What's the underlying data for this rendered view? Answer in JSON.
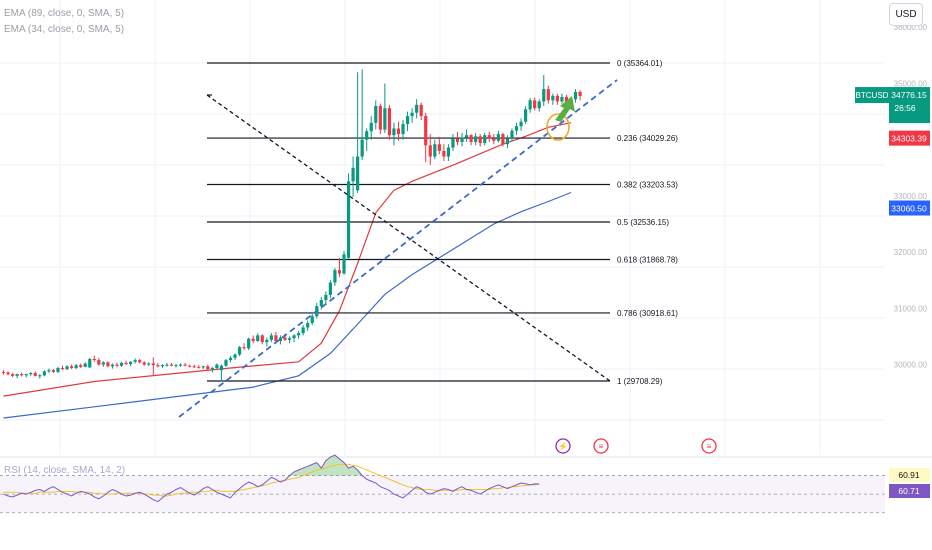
{
  "indicators": {
    "ema_slow": "EMA (89, close, 0, SMA, 5)",
    "ema_fast": "EMA (34, close, 0, SMA, 5)",
    "rsi": "RSI (14, close, SMA, 14, 2)"
  },
  "currency_button": "USD",
  "price_axis": {
    "ticks": [
      {
        "value": 36000,
        "label": "36000.00"
      },
      {
        "value": 35000,
        "label": "35000.00"
      },
      {
        "value": 34000,
        "label": "34000.00"
      },
      {
        "value": 33000,
        "label": "33000.00"
      },
      {
        "value": 32000,
        "label": "32000.00"
      },
      {
        "value": 31000,
        "label": "31000.00"
      },
      {
        "value": 30000,
        "label": "30000.00"
      }
    ],
    "badges": [
      {
        "value": 34776.15,
        "label": "34776.15",
        "sub": "26:56",
        "symbol": "BTCUSD",
        "color": "#089981"
      },
      {
        "value": 34303.39,
        "label": "34303.39",
        "color": "#f23645"
      },
      {
        "value": 33060.5,
        "label": "33060.50",
        "color": "#2962ff"
      }
    ]
  },
  "fibonacci": [
    {
      "level": "0",
      "price": "35364.01",
      "value": 35364.01
    },
    {
      "level": "0.236",
      "price": "34029.26",
      "value": 34029.26
    },
    {
      "level": "0.382",
      "price": "33203.53",
      "value": 33203.53
    },
    {
      "level": "0.5",
      "price": "32536.15",
      "value": 32536.15
    },
    {
      "level": "0.618",
      "price": "31868.78",
      "value": 31868.78
    },
    {
      "level": "0.786",
      "price": "30918.61",
      "value": 30918.61
    },
    {
      "level": "1",
      "price": "29708.29",
      "value": 29708.29
    }
  ],
  "rsi_badges": [
    {
      "label": "60.91",
      "color": "#fff9c4",
      "text": "#131722"
    },
    {
      "label": "60.71",
      "color": "#7e57c2",
      "text": "#ffffff"
    }
  ],
  "chart_data": {
    "type": "candlestick",
    "symbol": "BTCUSD",
    "last_price": 34776.15,
    "countdown": "26:56",
    "ylim": [
      29200,
      36300
    ],
    "candles": [
      [
        29870,
        29900,
        29820,
        29860
      ],
      [
        29860,
        29880,
        29810,
        29830
      ],
      [
        29830,
        29850,
        29780,
        29800
      ],
      [
        29800,
        29840,
        29760,
        29830
      ],
      [
        29830,
        29860,
        29790,
        29810
      ],
      [
        29810,
        29840,
        29770,
        29830
      ],
      [
        29830,
        29870,
        29800,
        29850
      ],
      [
        29850,
        29880,
        29790,
        29800
      ],
      [
        29800,
        29830,
        29750,
        29810
      ],
      [
        29810,
        29900,
        29790,
        29880
      ],
      [
        29880,
        29930,
        29850,
        29900
      ],
      [
        29900,
        29920,
        29850,
        29870
      ],
      [
        29870,
        29960,
        29850,
        29940
      ],
      [
        29940,
        29980,
        29900,
        29920
      ],
      [
        29920,
        29990,
        29900,
        29970
      ],
      [
        29970,
        30000,
        29920,
        29940
      ],
      [
        29940,
        30010,
        29920,
        29990
      ],
      [
        29990,
        30020,
        29940,
        29960
      ],
      [
        29960,
        30040,
        29950,
        30020
      ],
      [
        29950,
        30120,
        29940,
        30100
      ],
      [
        30100,
        30160,
        30050,
        30080
      ],
      [
        30080,
        30120,
        29980,
        30000
      ],
      [
        30000,
        30060,
        29960,
        30040
      ],
      [
        30040,
        30060,
        29950,
        29970
      ],
      [
        29970,
        30020,
        29930,
        30000
      ],
      [
        30000,
        30030,
        29950,
        29980
      ],
      [
        29980,
        30050,
        29960,
        30030
      ],
      [
        30030,
        30070,
        29990,
        30010
      ],
      [
        30010,
        30060,
        29970,
        30050
      ],
      [
        30050,
        30110,
        30020,
        30080
      ],
      [
        30080,
        30100,
        30020,
        30040
      ],
      [
        30040,
        30060,
        29980,
        30000
      ],
      [
        30000,
        30040,
        29970,
        30020
      ],
      [
        30020,
        30130,
        29800,
        29990
      ],
      [
        29990,
        30030,
        29950,
        29970
      ],
      [
        29970,
        30010,
        29940,
        29990
      ],
      [
        29990,
        30030,
        29960,
        30000
      ],
      [
        30000,
        30030,
        29970,
        29980
      ],
      [
        29980,
        30010,
        29950,
        29990
      ],
      [
        29990,
        30020,
        29960,
        30000
      ],
      [
        30000,
        30030,
        29970,
        29980
      ],
      [
        29980,
        30000,
        29950,
        29970
      ],
      [
        29970,
        30000,
        29940,
        29960
      ],
      [
        29960,
        29990,
        29930,
        29950
      ],
      [
        29950,
        29980,
        29920,
        29970
      ],
      [
        29970,
        30000,
        29900,
        29920
      ],
      [
        29920,
        29960,
        29860,
        29940
      ],
      [
        29940,
        30020,
        29920,
        30000
      ],
      [
        29900,
        30000,
        29700,
        29980
      ],
      [
        29980,
        30100,
        29960,
        30080
      ],
      [
        30080,
        30150,
        30040,
        30120
      ],
      [
        30120,
        30200,
        30080,
        30180
      ],
      [
        30180,
        30330,
        30150,
        30310
      ],
      [
        30310,
        30380,
        30260,
        30290
      ],
      [
        30290,
        30480,
        30260,
        30460
      ],
      [
        30460,
        30520,
        30380,
        30420
      ],
      [
        30420,
        30560,
        30400,
        30520
      ],
      [
        30520,
        30540,
        30360,
        30400
      ],
      [
        30400,
        30480,
        30320,
        30440
      ],
      [
        30440,
        30560,
        30400,
        30520
      ],
      [
        30520,
        30580,
        30380,
        30420
      ],
      [
        30420,
        30520,
        30360,
        30480
      ],
      [
        30480,
        30550,
        30420,
        30440
      ],
      [
        30440,
        30500,
        30380,
        30470
      ],
      [
        30470,
        30540,
        30400,
        30520
      ],
      [
        30520,
        30600,
        30460,
        30560
      ],
      [
        30560,
        30700,
        30520,
        30660
      ],
      [
        30660,
        30780,
        30600,
        30740
      ],
      [
        30740,
        30900,
        30700,
        30860
      ],
      [
        30860,
        31100,
        30820,
        31040
      ],
      [
        31040,
        31200,
        30980,
        31150
      ],
      [
        31150,
        31300,
        31080,
        31240
      ],
      [
        31240,
        31500,
        31180,
        31460
      ],
      [
        31460,
        31720,
        31400,
        31680
      ],
      [
        31680,
        31900,
        31560,
        31620
      ],
      [
        31620,
        32020,
        31600,
        31960
      ],
      [
        31900,
        33400,
        31880,
        33260
      ],
      [
        33260,
        33700,
        32980,
        33500
      ],
      [
        33100,
        35200,
        33050,
        33700
      ],
      [
        33700,
        35250,
        33640,
        34000
      ],
      [
        34000,
        34200,
        33800,
        34150
      ],
      [
        34150,
        34420,
        34000,
        34300
      ],
      [
        34300,
        34700,
        34180,
        34600
      ],
      [
        34600,
        34640,
        34100,
        34180
      ],
      [
        34180,
        35000,
        34120,
        34560
      ],
      [
        34560,
        34620,
        34000,
        34080
      ],
      [
        34080,
        34300,
        33900,
        34200
      ],
      [
        34200,
        34320,
        33980,
        34100
      ],
      [
        34100,
        34350,
        34000,
        34280
      ],
      [
        34280,
        34500,
        34150,
        34420
      ],
      [
        34420,
        34560,
        34300,
        34480
      ],
      [
        34480,
        34720,
        34380,
        34620
      ],
      [
        34620,
        34660,
        34350,
        34420
      ],
      [
        34420,
        34480,
        33600,
        33900
      ],
      [
        33900,
        34100,
        33550,
        33700
      ],
      [
        33700,
        34000,
        33650,
        33920
      ],
      [
        33920,
        34050,
        33740,
        33800
      ],
      [
        33800,
        33920,
        33620,
        33700
      ],
      [
        33700,
        33920,
        33620,
        33860
      ],
      [
        33860,
        34100,
        33800,
        34020
      ],
      [
        34020,
        34140,
        33900,
        33960
      ],
      [
        33960,
        34120,
        33880,
        34040
      ],
      [
        34040,
        34180,
        33960,
        34080
      ],
      [
        34080,
        34100,
        33900,
        33960
      ],
      [
        33960,
        34120,
        33900,
        34060
      ],
      [
        34060,
        34100,
        33880,
        33940
      ],
      [
        33940,
        34120,
        33900,
        34080
      ],
      [
        34080,
        34140,
        33960,
        34020
      ],
      [
        34020,
        34100,
        33920,
        33980
      ],
      [
        33980,
        34160,
        33950,
        34100
      ],
      [
        34100,
        34120,
        33880,
        33920
      ],
      [
        33920,
        34080,
        33850,
        34020
      ],
      [
        34020,
        34200,
        33980,
        34160
      ],
      [
        34160,
        34300,
        34080,
        34240
      ],
      [
        34240,
        34380,
        34160,
        34320
      ],
      [
        34320,
        34600,
        34280,
        34540
      ],
      [
        34540,
        34740,
        34480,
        34700
      ],
      [
        34700,
        34750,
        34520,
        34560
      ],
      [
        34560,
        34720,
        34500,
        34680
      ],
      [
        34680,
        35150,
        34600,
        34900
      ],
      [
        34900,
        34960,
        34640,
        34700
      ],
      [
        34700,
        34820,
        34620,
        34780
      ],
      [
        34780,
        34820,
        34620,
        34680
      ],
      [
        34680,
        34820,
        34640,
        34760
      ],
      [
        34760,
        34800,
        34560,
        34620
      ],
      [
        34620,
        34760,
        34580,
        34720
      ],
      [
        34720,
        34900,
        34660,
        34850
      ],
      [
        34850,
        34880,
        34700,
        34776
      ]
    ],
    "ema_34": [
      [
        0,
        29440
      ],
      [
        20,
        29700
      ],
      [
        50,
        29940
      ],
      [
        65,
        30050
      ],
      [
        70,
        30380
      ],
      [
        74,
        30960
      ],
      [
        78,
        31800
      ],
      [
        82,
        32700
      ],
      [
        86,
        33100
      ],
      [
        90,
        33260
      ],
      [
        95,
        33420
      ],
      [
        100,
        33580
      ],
      [
        105,
        33750
      ],
      [
        110,
        33920
      ],
      [
        115,
        34060
      ],
      [
        120,
        34220
      ],
      [
        125,
        34303
      ]
    ],
    "ema_89": [
      [
        0,
        29050
      ],
      [
        20,
        29250
      ],
      [
        40,
        29450
      ],
      [
        55,
        29600
      ],
      [
        65,
        29800
      ],
      [
        72,
        30200
      ],
      [
        78,
        30720
      ],
      [
        84,
        31250
      ],
      [
        90,
        31600
      ],
      [
        96,
        31900
      ],
      [
        102,
        32200
      ],
      [
        108,
        32500
      ],
      [
        114,
        32720
      ],
      [
        120,
        32900
      ],
      [
        125,
        33060
      ]
    ],
    "trendline_points": [
      [
        29100,
        35364
      ],
      [
        127,
        35364
      ]
    ],
    "rsi_values": [
      50,
      48,
      47,
      49,
      51,
      50,
      52,
      54,
      55,
      53,
      56,
      58,
      55,
      52,
      50,
      48,
      51,
      53,
      52,
      50,
      47,
      45,
      48,
      52,
      55,
      53,
      50,
      48,
      49,
      51,
      52,
      50,
      47,
      44,
      42,
      46,
      50,
      52,
      55,
      57,
      54,
      51,
      49,
      52,
      56,
      58,
      55,
      52,
      50,
      48,
      46,
      52,
      56,
      60,
      63,
      61,
      58,
      60,
      64,
      68,
      66,
      63,
      65,
      70,
      74,
      76,
      78,
      80,
      82,
      84,
      78,
      86,
      90,
      92,
      88,
      84,
      78,
      80,
      76,
      70,
      66,
      64,
      62,
      58,
      56,
      54,
      50,
      48,
      46,
      50,
      54,
      58,
      56,
      52,
      50,
      52,
      54,
      56,
      55,
      53,
      56,
      58,
      55,
      54,
      52,
      50,
      53,
      56,
      58,
      60,
      58,
      56,
      58,
      60,
      62,
      61,
      60,
      61,
      60.9
    ],
    "rsi_sma": [
      52,
      52,
      52,
      52,
      51,
      51,
      51,
      51,
      52,
      52,
      52,
      52,
      53,
      53,
      53,
      53,
      52,
      52,
      52,
      52,
      51,
      51,
      50,
      50,
      50,
      51,
      51,
      51,
      51,
      51,
      51,
      50,
      50,
      49,
      49,
      48,
      48,
      49,
      50,
      51,
      51,
      52,
      52,
      52,
      53,
      53,
      54,
      54,
      53,
      53,
      53,
      53,
      54,
      55,
      56,
      57,
      58,
      59,
      60,
      62,
      63,
      64,
      65,
      66,
      67,
      68,
      70,
      72,
      74,
      76,
      77,
      78,
      80,
      81,
      82,
      82,
      82,
      81,
      80,
      78,
      76,
      74,
      72,
      70,
      68,
      66,
      64,
      62,
      60,
      58,
      57,
      56,
      55,
      55,
      55,
      54,
      54,
      54,
      54,
      54,
      54,
      55,
      55,
      55,
      55,
      55,
      55,
      55,
      56,
      56,
      57,
      57,
      58,
      58,
      59,
      59,
      60,
      60,
      60.7
    ],
    "rsi_levels": [
      70,
      50,
      30
    ]
  }
}
